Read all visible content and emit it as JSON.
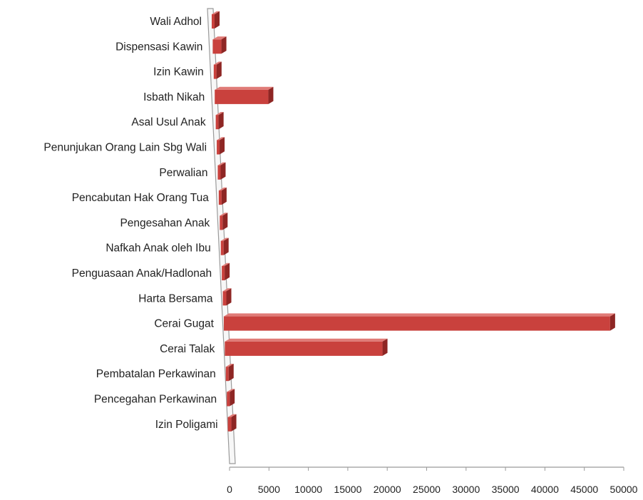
{
  "chart_data": {
    "type": "bar",
    "orientation": "horizontal",
    "style": "3d",
    "categories": [
      "Wali Adhol",
      "Dispensasi Kawin",
      "Izin Kawin",
      "Isbath Nikah",
      "Asal Usul Anak",
      "Penunjukan Orang Lain Sbg Wali",
      "Perwalian",
      "Pencabutan Hak Orang Tua",
      "Pengesahan Anak",
      "Nafkah Anak oleh Ibu",
      "Penguasaan Anak/Hadlonah",
      "Harta Bersama",
      "Cerai Gugat",
      "Cerai Talak",
      "Pembatalan Perkawinan",
      "Pencegahan Perkawinan",
      "Izin Poligami"
    ],
    "values": [
      20,
      1100,
      150,
      6800,
      30,
      20,
      150,
      20,
      120,
      20,
      60,
      450,
      49000,
      20000,
      40,
      10,
      450
    ],
    "xlim": [
      0,
      50000
    ],
    "xticks": [
      "0",
      "5000",
      "10000",
      "15000",
      "20000",
      "25000",
      "30000",
      "35000",
      "40000",
      "45000",
      "50000"
    ],
    "title": "",
    "xlabel": "",
    "ylabel": "",
    "legend": "none",
    "grid": false,
    "colors": {
      "bar": "#c9413d",
      "bar_top": "#e07b77",
      "bar_dark": "#8e2624",
      "axis": "#9a9a9a",
      "text": "#222222"
    }
  }
}
